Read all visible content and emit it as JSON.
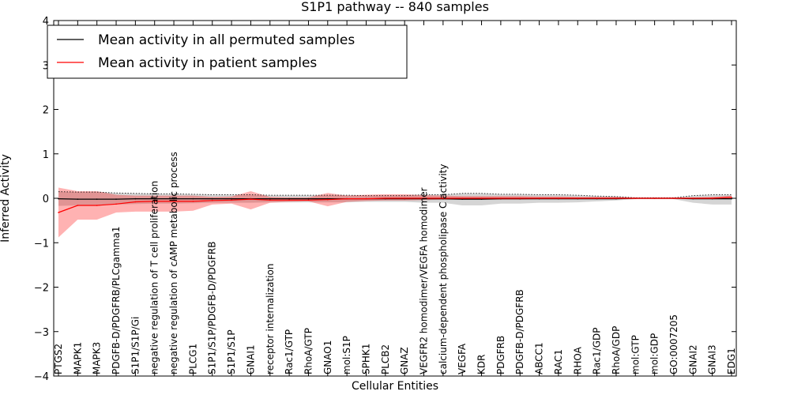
{
  "chart_data": {
    "type": "line",
    "title": "S1P1 pathway -- 840 samples",
    "xlabel": "Cellular Entities",
    "ylabel": "Inferred Activity",
    "ylim": [
      -4,
      4
    ],
    "yticks": [
      -4,
      -3,
      -2,
      -1,
      0,
      1,
      2,
      3,
      4
    ],
    "ytick_labels": [
      "−4",
      "−3",
      "−2",
      "−1",
      "0",
      "1",
      "2",
      "3",
      "4"
    ],
    "grid": false,
    "legend_position": "top-left",
    "categories": [
      "PTGS2",
      "MAPK1",
      "MAPK3",
      "PDGFB-D/PDGFRB/PLCgamma1",
      "S1P1/S1P/Gi",
      "negative regulation of T cell proliferation",
      "negative regulation of cAMP metabolic process",
      "PLCG1",
      "S1P1/S1P/PDGFB-D/PDGFRB",
      "S1P1/S1P",
      "GNAI1",
      "receptor internalization",
      "Rac1/GTP",
      "RhoA/GTP",
      "GNAO1",
      "mol:S1P",
      "SPHK1",
      "PLCB2",
      "GNAZ",
      "VEGFR2 homodimer/VEGFA homodimer",
      "calcium-dependent phospholipase C activity",
      "VEGFA",
      "KDR",
      "PDGFRB",
      "PDGFB-D/PDGFRB",
      "ABCC1",
      "RAC1",
      "RHOA",
      "Rac1/GDP",
      "RhoA/GDP",
      "mol:GTP",
      "mol:GDP",
      "GO:0007205",
      "GNAI2",
      "GNAI3",
      "EDG1"
    ],
    "series": [
      {
        "name": "Mean activity in all permuted samples",
        "color": "#000000",
        "values": [
          -0.01,
          -0.02,
          -0.02,
          -0.02,
          -0.01,
          -0.01,
          -0.01,
          -0.01,
          -0.01,
          -0.01,
          -0.01,
          -0.01,
          -0.01,
          -0.01,
          -0.01,
          -0.01,
          -0.01,
          -0.01,
          -0.01,
          -0.01,
          -0.01,
          -0.02,
          -0.02,
          -0.01,
          -0.01,
          -0.01,
          -0.01,
          -0.01,
          -0.01,
          -0.01,
          0.0,
          0.0,
          0.0,
          -0.01,
          -0.01,
          -0.01
        ],
        "band_low": [
          -0.17,
          -0.16,
          -0.16,
          -0.14,
          -0.13,
          -0.12,
          -0.12,
          -0.11,
          -0.1,
          -0.1,
          -0.1,
          -0.09,
          -0.09,
          -0.09,
          -0.09,
          -0.09,
          -0.08,
          -0.08,
          -0.08,
          -0.1,
          -0.1,
          -0.16,
          -0.16,
          -0.12,
          -0.12,
          -0.1,
          -0.1,
          -0.09,
          -0.07,
          -0.05,
          -0.02,
          -0.02,
          -0.02,
          -0.1,
          -0.14,
          -0.14
        ],
        "band_high": [
          0.15,
          0.14,
          0.14,
          0.12,
          0.11,
          0.1,
          0.1,
          0.09,
          0.08,
          0.08,
          0.08,
          0.07,
          0.07,
          0.07,
          0.07,
          0.07,
          0.06,
          0.06,
          0.06,
          0.08,
          0.08,
          0.11,
          0.11,
          0.09,
          0.09,
          0.08,
          0.08,
          0.07,
          0.05,
          0.04,
          0.01,
          0.01,
          0.01,
          0.06,
          0.08,
          0.08
        ]
      },
      {
        "name": "Mean activity in patient samples",
        "color": "#ff0000",
        "values": [
          -0.32,
          -0.16,
          -0.16,
          -0.13,
          -0.08,
          -0.07,
          -0.07,
          -0.07,
          -0.05,
          -0.04,
          -0.02,
          -0.04,
          -0.04,
          -0.04,
          -0.03,
          -0.01,
          -0.01,
          0.0,
          0.0,
          0.0,
          0.0,
          0.0,
          0.0,
          0.0,
          0.0,
          0.0,
          0.0,
          0.0,
          0.0,
          0.0,
          0.0,
          0.0,
          0.0,
          0.0,
          0.0,
          0.02
        ],
        "band_low": [
          -0.88,
          -0.48,
          -0.48,
          -0.32,
          -0.3,
          -0.3,
          -0.3,
          -0.28,
          -0.14,
          -0.12,
          -0.25,
          -0.1,
          -0.08,
          -0.07,
          -0.18,
          -0.08,
          -0.06,
          -0.05,
          -0.05,
          -0.04,
          -0.03,
          -0.03,
          -0.03,
          -0.03,
          -0.03,
          -0.02,
          -0.02,
          -0.02,
          -0.01,
          -0.01,
          -0.01,
          -0.01,
          -0.01,
          -0.01,
          -0.01,
          -0.01
        ],
        "band_high": [
          0.24,
          0.16,
          0.16,
          0.08,
          0.06,
          0.06,
          0.06,
          0.06,
          0.03,
          0.04,
          0.16,
          0.03,
          0.02,
          0.02,
          0.12,
          0.06,
          0.08,
          0.09,
          0.09,
          0.07,
          0.06,
          0.05,
          0.05,
          0.05,
          0.05,
          0.04,
          0.04,
          0.03,
          0.03,
          0.03,
          0.02,
          0.02,
          0.02,
          0.02,
          0.03,
          0.06
        ]
      }
    ]
  },
  "colors": {
    "permuted_band": "#b3b3b3",
    "patient_band": "#ff0000",
    "axes": "#000000",
    "background": "#ffffff"
  }
}
